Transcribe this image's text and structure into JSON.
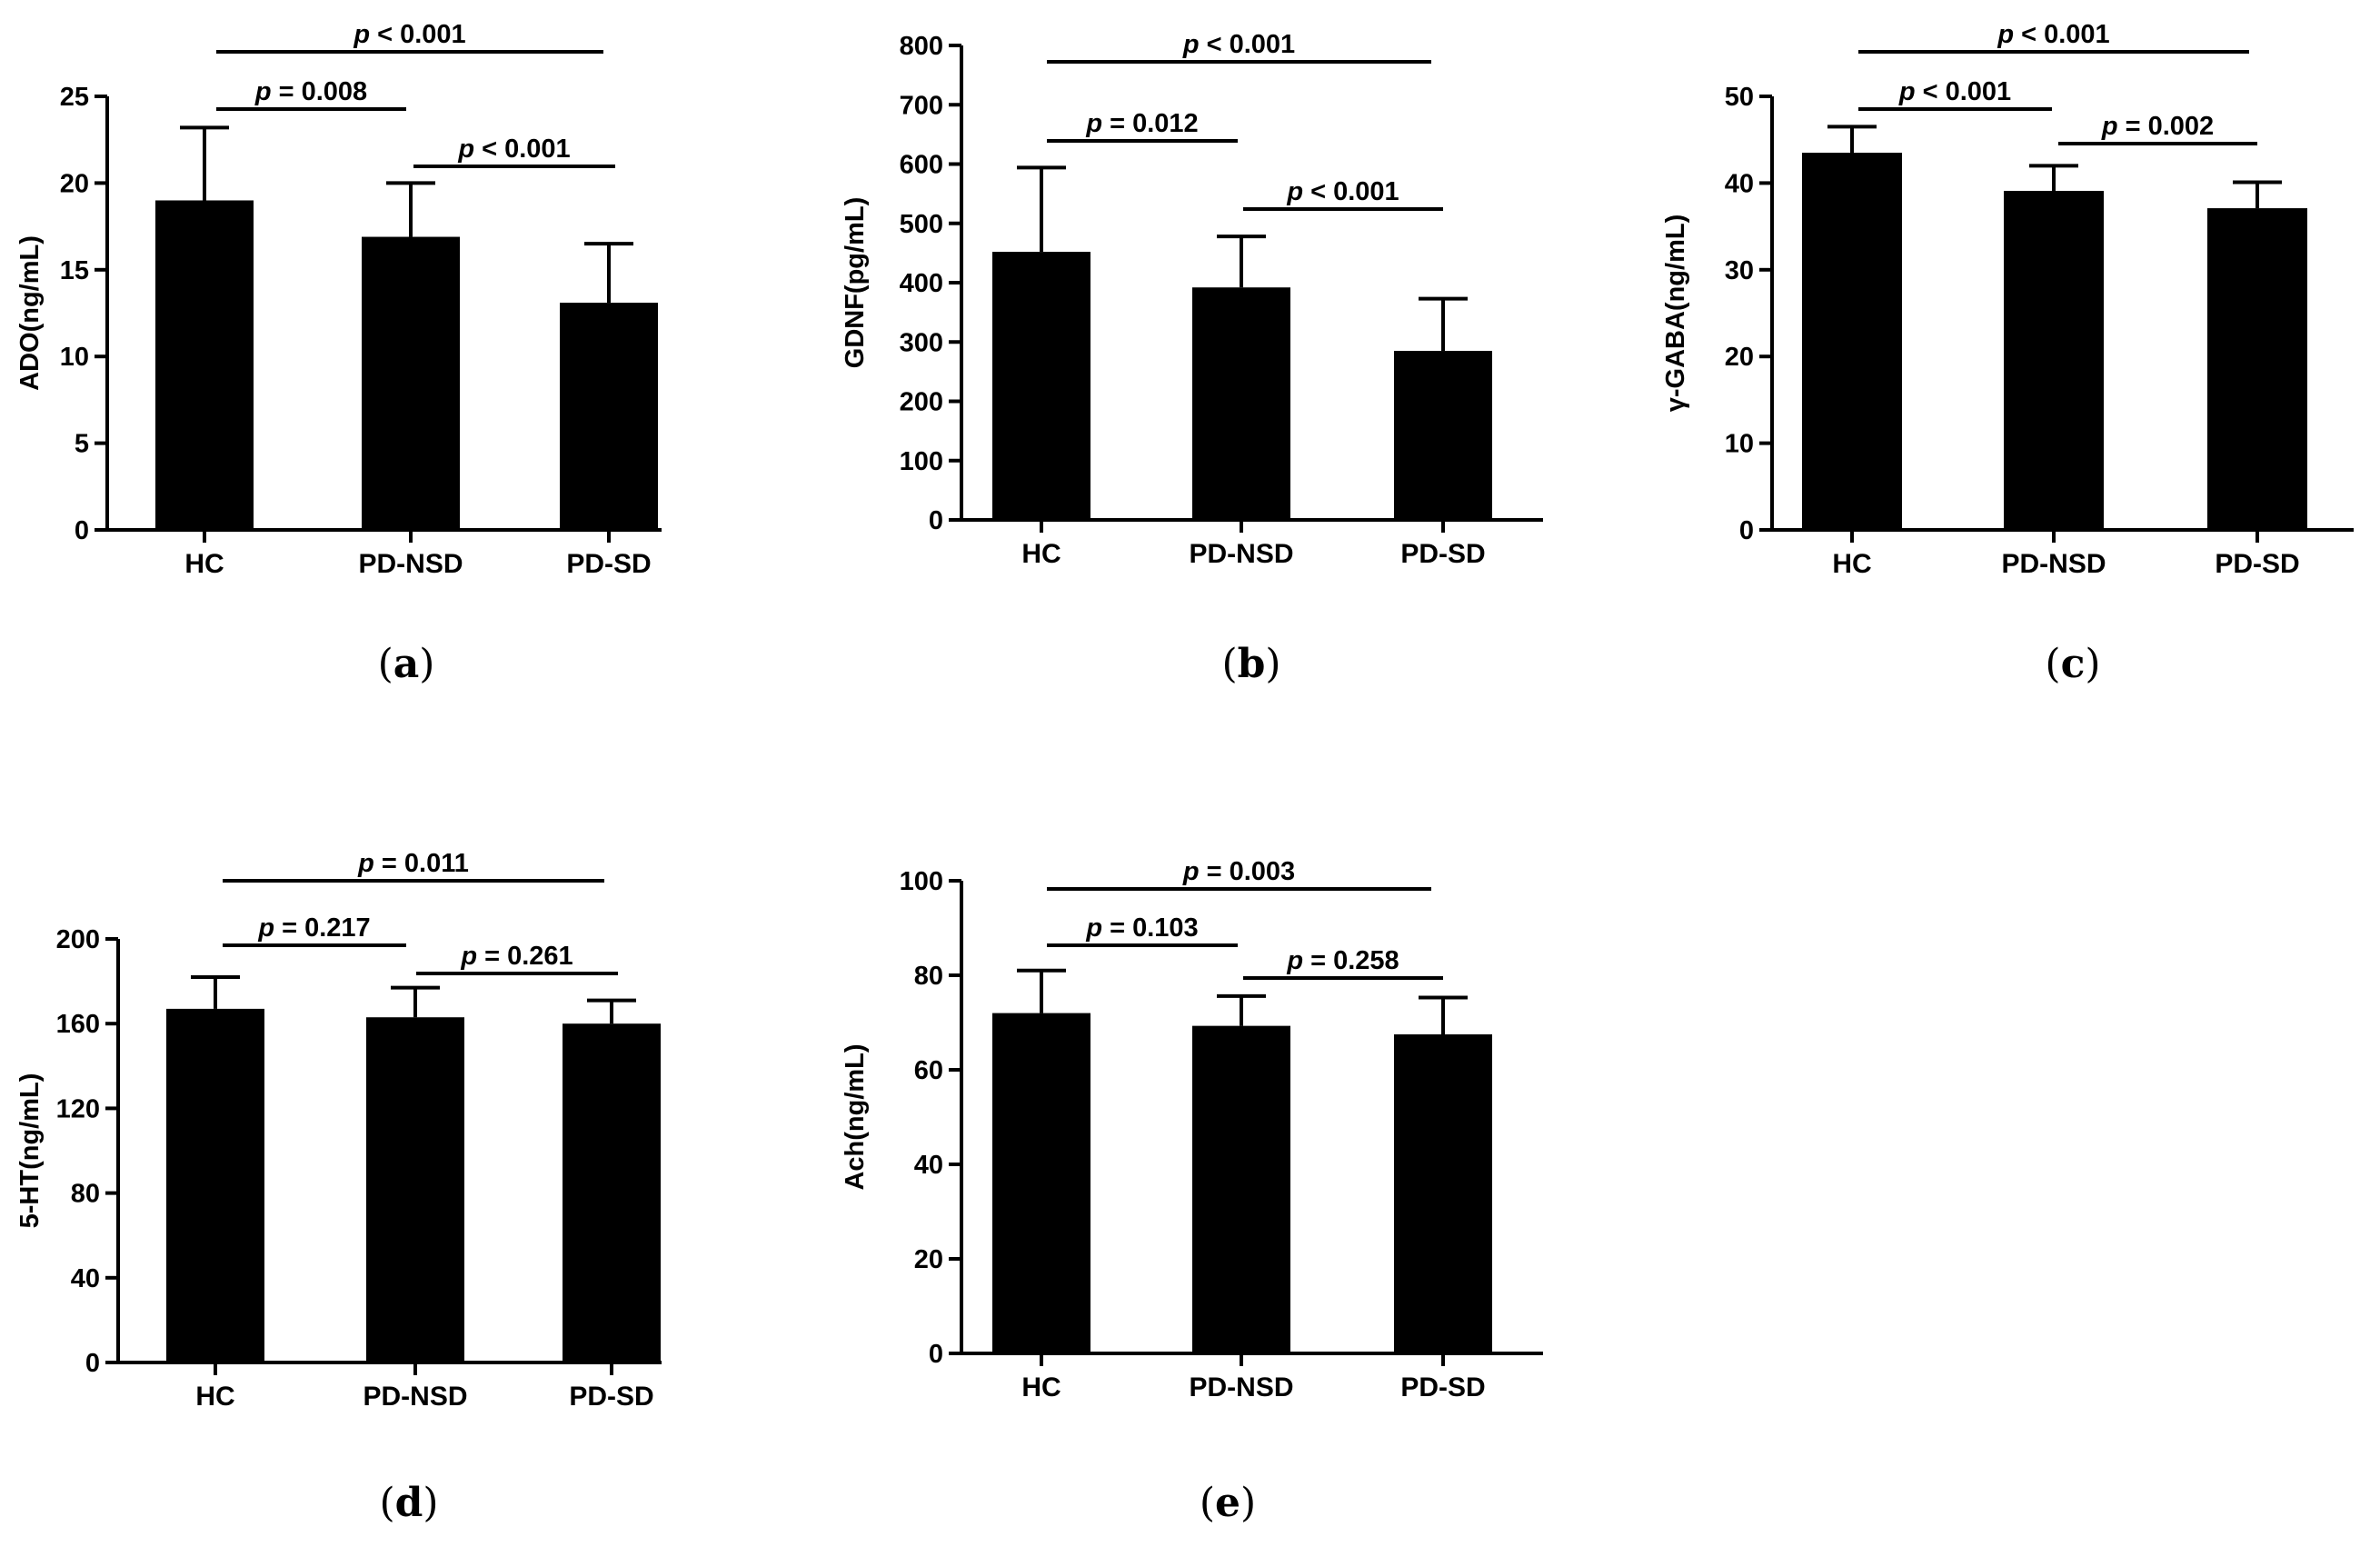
{
  "chart_data": [
    {
      "type": "bar",
      "panel": "a",
      "categories": [
        "HC",
        "PD-NSD",
        "PD-SD"
      ],
      "values": [
        19.0,
        16.9,
        13.1
      ],
      "errors": [
        4.2,
        3.1,
        3.4
      ],
      "ylabel": "ADO(ng/mL)",
      "ylim": [
        0,
        25
      ],
      "yticks": [
        0,
        5,
        10,
        15,
        20,
        25
      ],
      "comparisons": [
        {
          "from": 0,
          "to": 1,
          "prefix": "p",
          "text": " = 0.008"
        },
        {
          "from": 1,
          "to": 2,
          "prefix": "p",
          "text": " < 0.001"
        },
        {
          "from": 0,
          "to": 2,
          "prefix": "p",
          "text": " < 0.001"
        }
      ]
    },
    {
      "type": "bar",
      "panel": "b",
      "categories": [
        "HC",
        "PD-NSD",
        "PD-SD"
      ],
      "values": [
        452,
        392,
        285
      ],
      "errors": [
        142,
        86,
        88
      ],
      "ylabel": "GDNF(pg/mL)",
      "ylim": [
        0,
        800
      ],
      "yticks": [
        0,
        100,
        200,
        300,
        400,
        500,
        600,
        700,
        800
      ],
      "comparisons": [
        {
          "from": 0,
          "to": 1,
          "prefix": "p",
          "text": " = 0.012"
        },
        {
          "from": 1,
          "to": 2,
          "prefix": "p",
          "text": " < 0.001"
        },
        {
          "from": 0,
          "to": 2,
          "prefix": "p",
          "text": " < 0.001"
        }
      ]
    },
    {
      "type": "bar",
      "panel": "c",
      "categories": [
        "HC",
        "PD-NSD",
        "PD-SD"
      ],
      "values": [
        43.5,
        39.1,
        37.1
      ],
      "errors": [
        3.0,
        2.9,
        3.0
      ],
      "ylabel": "γ-GABA(ng/mL)",
      "ylim": [
        0,
        50
      ],
      "yticks": [
        0,
        10,
        20,
        30,
        40,
        50
      ],
      "comparisons": [
        {
          "from": 0,
          "to": 1,
          "prefix": "p",
          "text": " < 0.001"
        },
        {
          "from": 1,
          "to": 2,
          "prefix": "p",
          "text": " = 0.002"
        },
        {
          "from": 0,
          "to": 2,
          "prefix": "p",
          "text": " < 0.001"
        }
      ]
    },
    {
      "type": "bar",
      "panel": "d",
      "categories": [
        "HC",
        "PD-NSD",
        "PD-SD"
      ],
      "values": [
        167,
        163,
        160
      ],
      "errors": [
        15,
        14,
        11
      ],
      "ylabel": "5-HT(ng/mL)",
      "ylim": [
        0,
        200
      ],
      "yticks": [
        0,
        40,
        80,
        120,
        160,
        200
      ],
      "comparisons": [
        {
          "from": 0,
          "to": 1,
          "prefix": "p",
          "text": " = 0.217"
        },
        {
          "from": 1,
          "to": 2,
          "prefix": "p",
          "text": " = 0.261"
        },
        {
          "from": 0,
          "to": 2,
          "prefix": "p",
          "text": " = 0.011"
        }
      ]
    },
    {
      "type": "bar",
      "panel": "e",
      "categories": [
        "HC",
        "PD-NSD",
        "PD-SD"
      ],
      "values": [
        72,
        69.3,
        67.5
      ],
      "errors": [
        9,
        6.3,
        7.8
      ],
      "ylabel": "Ach(ng/mL)",
      "ylim": [
        0,
        100
      ],
      "yticks": [
        0,
        20,
        40,
        60,
        80,
        100
      ],
      "comparisons": [
        {
          "from": 0,
          "to": 1,
          "prefix": "p",
          "text": " = 0.103"
        },
        {
          "from": 1,
          "to": 2,
          "prefix": "p",
          "text": " = 0.258"
        },
        {
          "from": 0,
          "to": 2,
          "prefix": "p",
          "text": " = 0.003"
        }
      ]
    }
  ],
  "panel_labels": [
    "a",
    "b",
    "c",
    "d",
    "e"
  ]
}
